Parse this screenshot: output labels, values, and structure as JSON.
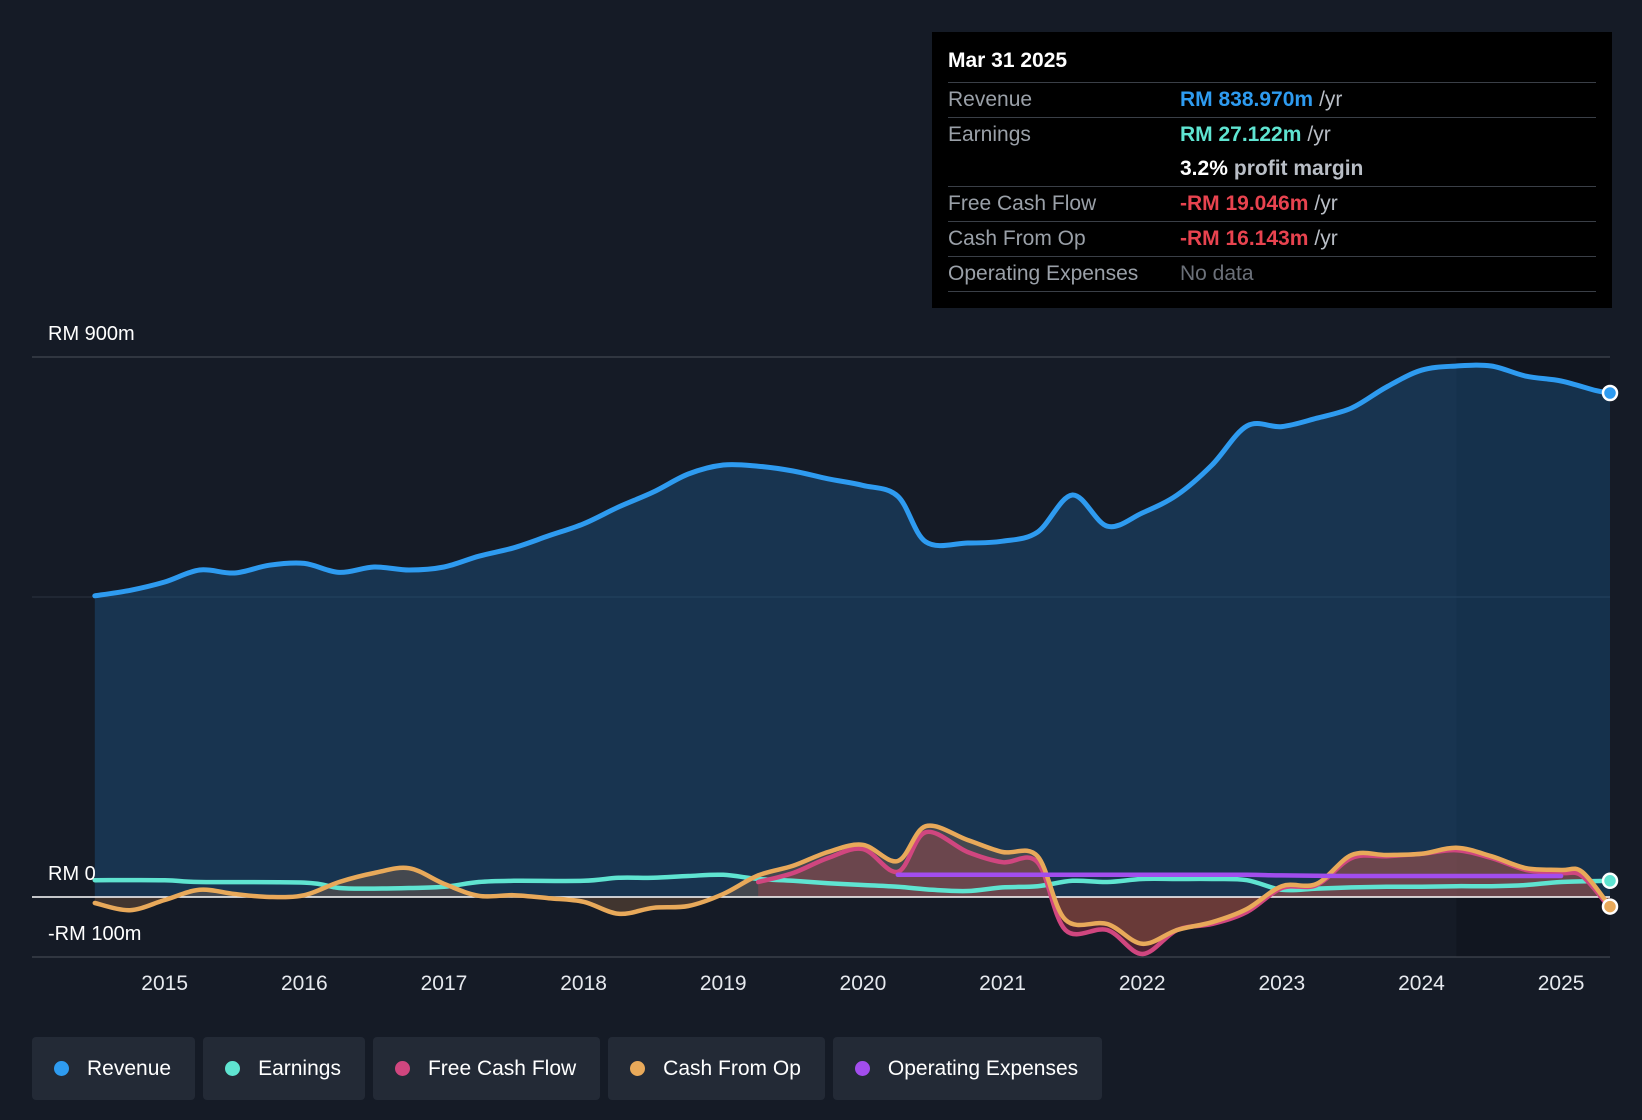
{
  "tooltip": {
    "date": "Mar 31 2025",
    "rows": {
      "revenue": {
        "label": "Revenue",
        "value": "RM 838.970m",
        "unit": "/yr"
      },
      "earnings": {
        "label": "Earnings",
        "value": "RM 27.122m",
        "unit": "/yr"
      },
      "margin": {
        "value": "3.2%",
        "unit": "profit margin"
      },
      "fcf": {
        "label": "Free Cash Flow",
        "value": "-RM 19.046m",
        "unit": "/yr"
      },
      "cfo": {
        "label": "Cash From Op",
        "value": "-RM 16.143m",
        "unit": "/yr"
      },
      "opex": {
        "label": "Operating Expenses",
        "value": "No data"
      }
    }
  },
  "legend": {
    "revenue": "Revenue",
    "earnings": "Earnings",
    "fcf": "Free Cash Flow",
    "cfo": "Cash From Op",
    "opex": "Operating Expenses"
  },
  "colors": {
    "revenue": "#2e9bf0",
    "earnings": "#5fe4d1",
    "fcf": "#d0467f",
    "cfo": "#e8a95a",
    "opex": "#a24ded"
  },
  "chart_data": {
    "type": "line",
    "y_labels": {
      "top": "RM 900m",
      "zero": "RM 0",
      "bottom": "-RM 100m"
    },
    "ylim": [
      -100,
      900
    ],
    "xlim": [
      2014.05,
      2025.35
    ],
    "x_ticks": [
      "2015",
      "2016",
      "2017",
      "2018",
      "2019",
      "2020",
      "2021",
      "2022",
      "2023",
      "2024",
      "2025"
    ],
    "highlight_from": 2024.25,
    "series": [
      {
        "name": "Revenue",
        "key": "revenue",
        "points": [
          [
            2014.5,
            502
          ],
          [
            2014.75,
            511
          ],
          [
            2015,
            525
          ],
          [
            2015.25,
            545
          ],
          [
            2015.5,
            540
          ],
          [
            2015.75,
            553
          ],
          [
            2016,
            556
          ],
          [
            2016.25,
            541
          ],
          [
            2016.5,
            550
          ],
          [
            2016.75,
            545
          ],
          [
            2017,
            550
          ],
          [
            2017.25,
            568
          ],
          [
            2017.5,
            582
          ],
          [
            2017.75,
            602
          ],
          [
            2018,
            622
          ],
          [
            2018.25,
            650
          ],
          [
            2018.5,
            675
          ],
          [
            2018.75,
            705
          ],
          [
            2019,
            720
          ],
          [
            2019.25,
            718
          ],
          [
            2019.5,
            710
          ],
          [
            2019.75,
            697
          ],
          [
            2020,
            686
          ],
          [
            2020.25,
            668
          ],
          [
            2020.45,
            592
          ],
          [
            2020.75,
            590
          ],
          [
            2021,
            593
          ],
          [
            2021.25,
            608
          ],
          [
            2021.5,
            670
          ],
          [
            2021.75,
            618
          ],
          [
            2022,
            640
          ],
          [
            2022.25,
            670
          ],
          [
            2022.5,
            720
          ],
          [
            2022.75,
            785
          ],
          [
            2023,
            784
          ],
          [
            2023.25,
            798
          ],
          [
            2023.5,
            815
          ],
          [
            2023.75,
            850
          ],
          [
            2024,
            878
          ],
          [
            2024.25,
            885
          ],
          [
            2024.5,
            885
          ],
          [
            2024.75,
            868
          ],
          [
            2025,
            860
          ],
          [
            2025.25,
            844
          ],
          [
            2025.35,
            840
          ]
        ]
      },
      {
        "name": "Earnings",
        "key": "earnings",
        "points": [
          [
            2014.5,
            28
          ],
          [
            2015,
            28
          ],
          [
            2015.25,
            25
          ],
          [
            2016,
            24
          ],
          [
            2016.25,
            15
          ],
          [
            2016.5,
            14
          ],
          [
            2016.75,
            15
          ],
          [
            2017,
            17
          ],
          [
            2017.25,
            25
          ],
          [
            2017.5,
            27
          ],
          [
            2018,
            27
          ],
          [
            2018.25,
            32
          ],
          [
            2018.5,
            32
          ],
          [
            2018.75,
            35
          ],
          [
            2019,
            37
          ],
          [
            2019.25,
            30
          ],
          [
            2019.5,
            27
          ],
          [
            2019.75,
            23
          ],
          [
            2020,
            20
          ],
          [
            2020.25,
            17
          ],
          [
            2020.5,
            12
          ],
          [
            2020.75,
            10
          ],
          [
            2021,
            16
          ],
          [
            2021.25,
            18
          ],
          [
            2021.5,
            27
          ],
          [
            2021.75,
            25
          ],
          [
            2022,
            30
          ],
          [
            2022.25,
            30
          ],
          [
            2022.5,
            30
          ],
          [
            2022.75,
            28
          ],
          [
            2023,
            12
          ],
          [
            2023.25,
            14
          ],
          [
            2023.5,
            16
          ],
          [
            2023.75,
            17
          ],
          [
            2024,
            17
          ],
          [
            2024.25,
            18
          ],
          [
            2024.5,
            18
          ],
          [
            2024.75,
            20
          ],
          [
            2025,
            25
          ],
          [
            2025.35,
            27
          ]
        ]
      },
      {
        "name": "Free Cash Flow",
        "key": "fcf",
        "points": [
          [
            2019.25,
            25
          ],
          [
            2019.5,
            40
          ],
          [
            2019.75,
            65
          ],
          [
            2020,
            80
          ],
          [
            2020.25,
            42
          ],
          [
            2020.45,
            108
          ],
          [
            2020.75,
            75
          ],
          [
            2021,
            58
          ],
          [
            2021.25,
            58
          ],
          [
            2021.45,
            -55
          ],
          [
            2021.75,
            -55
          ],
          [
            2022,
            -95
          ],
          [
            2022.25,
            -55
          ],
          [
            2022.5,
            -45
          ],
          [
            2022.75,
            -25
          ],
          [
            2023,
            15
          ],
          [
            2023.25,
            20
          ],
          [
            2023.5,
            65
          ],
          [
            2023.75,
            68
          ],
          [
            2024,
            72
          ],
          [
            2024.25,
            78
          ],
          [
            2024.5,
            65
          ],
          [
            2024.75,
            45
          ],
          [
            2025,
            40
          ],
          [
            2025.15,
            35
          ],
          [
            2025.35,
            -19
          ]
        ]
      },
      {
        "name": "Cash From Op",
        "key": "cfo",
        "points": [
          [
            2014.5,
            -10
          ],
          [
            2014.75,
            -22
          ],
          [
            2015,
            -5
          ],
          [
            2015.25,
            12
          ],
          [
            2015.5,
            5
          ],
          [
            2015.75,
            0
          ],
          [
            2016,
            3
          ],
          [
            2016.25,
            25
          ],
          [
            2016.5,
            40
          ],
          [
            2016.75,
            48
          ],
          [
            2017,
            22
          ],
          [
            2017.25,
            2
          ],
          [
            2017.5,
            3
          ],
          [
            2017.75,
            -2
          ],
          [
            2018,
            -8
          ],
          [
            2018.25,
            -28
          ],
          [
            2018.5,
            -18
          ],
          [
            2018.75,
            -15
          ],
          [
            2019,
            5
          ],
          [
            2019.25,
            36
          ],
          [
            2019.5,
            52
          ],
          [
            2019.75,
            75
          ],
          [
            2020,
            87
          ],
          [
            2020.25,
            60
          ],
          [
            2020.45,
            118
          ],
          [
            2020.75,
            95
          ],
          [
            2021,
            75
          ],
          [
            2021.25,
            68
          ],
          [
            2021.45,
            -38
          ],
          [
            2021.75,
            -45
          ],
          [
            2022,
            -78
          ],
          [
            2022.25,
            -55
          ],
          [
            2022.5,
            -42
          ],
          [
            2022.75,
            -20
          ],
          [
            2023,
            18
          ],
          [
            2023.25,
            22
          ],
          [
            2023.5,
            70
          ],
          [
            2023.75,
            70
          ],
          [
            2024,
            72
          ],
          [
            2024.25,
            82
          ],
          [
            2024.5,
            68
          ],
          [
            2024.75,
            48
          ],
          [
            2025,
            45
          ],
          [
            2025.15,
            42
          ],
          [
            2025.35,
            -16
          ]
        ]
      },
      {
        "name": "Operating Expenses",
        "key": "opex",
        "points": [
          [
            2020.25,
            37
          ],
          [
            2020.75,
            37
          ],
          [
            2021.25,
            37
          ],
          [
            2021.75,
            37
          ],
          [
            2022.25,
            37
          ],
          [
            2022.75,
            37
          ],
          [
            2023,
            36
          ],
          [
            2023.5,
            35
          ],
          [
            2024,
            35
          ],
          [
            2024.5,
            35
          ],
          [
            2025,
            35
          ]
        ]
      }
    ]
  }
}
